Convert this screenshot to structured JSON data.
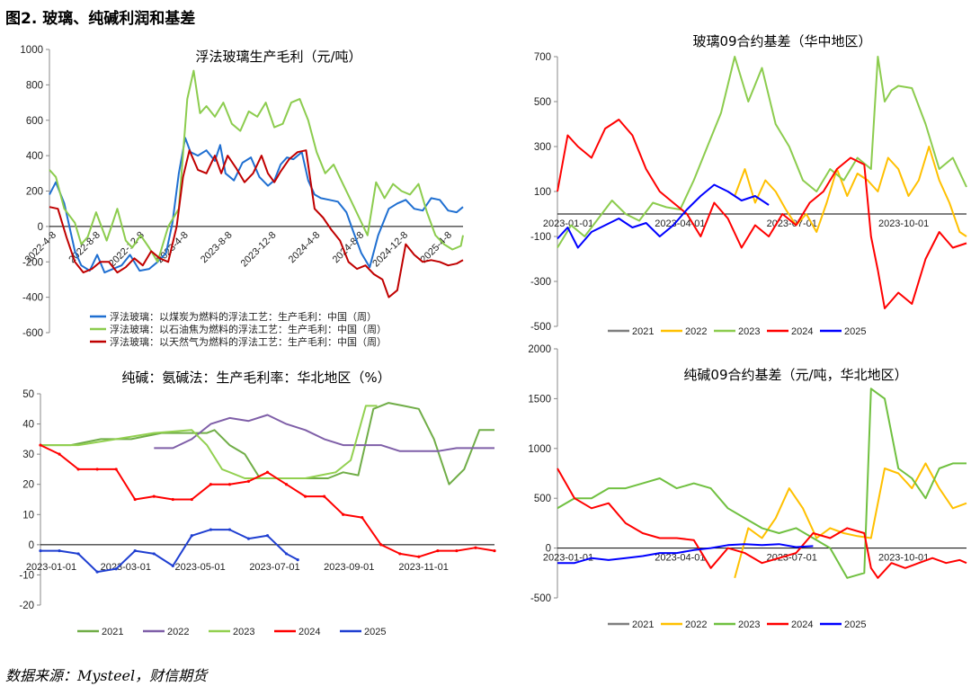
{
  "figure_title": "图2.  玻璃、纯碱利润和基差",
  "source": "数据来源：Mysteel，财信期货",
  "chart_data": [
    {
      "id": "float_glass_profit",
      "type": "line",
      "title": "浮法玻璃生产毛利（元/吨）",
      "ylim": [
        -600,
        1000
      ],
      "yticks": [
        -600,
        -400,
        -200,
        0,
        200,
        400,
        600,
        800,
        1000
      ],
      "xticks": [
        "2022-4-8",
        "2022-8-8",
        "2022-12-8",
        "2023-4-8",
        "2023-8-8",
        "2023-12-8",
        "2024-4-8",
        "2024-8-8",
        "2024-12-8",
        "2025-4-8"
      ],
      "xrange": [
        0,
        39
      ],
      "legend_position": "bottom",
      "series": [
        {
          "name": "浮法玻璃：以煤炭为燃料的浮法工艺：生产毛利：中国（周）",
          "color": "#1f6fd1",
          "x": [
            0,
            0.6,
            1.4,
            2.4,
            3,
            3.8,
            4.5,
            5.2,
            6,
            6.8,
            7.6,
            8.5,
            9.4,
            10.2,
            11,
            11.6,
            12.2,
            12.8,
            13.3,
            14,
            14.8,
            15.6,
            16.1,
            16.6,
            17.4,
            18.2,
            19,
            19.8,
            20.6,
            21.2,
            21.8,
            22.4,
            23,
            23.8,
            24.4,
            25,
            25.6,
            26.4,
            27.2,
            28,
            28.6,
            29.4,
            30.2,
            31,
            32,
            32.8,
            33.6,
            34.4,
            35.2,
            36,
            36.8,
            37.6,
            38.4,
            39
          ],
          "y": [
            180,
            250,
            130,
            -140,
            -220,
            -250,
            -160,
            -260,
            -240,
            -220,
            -160,
            -250,
            -240,
            -200,
            -150,
            20,
            300,
            500,
            420,
            400,
            430,
            370,
            460,
            300,
            260,
            360,
            390,
            280,
            230,
            260,
            350,
            390,
            380,
            420,
            260,
            180,
            160,
            150,
            140,
            80,
            -20,
            -150,
            -230,
            -50,
            100,
            130,
            150,
            100,
            90,
            160,
            150,
            90,
            80,
            110
          ]
        },
        {
          "name": "浮法玻璃：以石油焦为燃料的浮法工艺：生产毛利：中国（周）",
          "color": "#8ccc4e",
          "x": [
            0,
            0.6,
            1.4,
            2.4,
            3,
            3.6,
            4.4,
            5.4,
            6.4,
            7.2,
            7.8,
            8.6,
            9.4,
            10.2,
            11.2,
            12.2,
            13,
            13.6,
            14.2,
            14.8,
            15.6,
            16.4,
            17.2,
            18,
            18.8,
            19.6,
            20.4,
            21.2,
            22,
            22.8,
            23.6,
            24.4,
            25.2,
            26,
            26.8,
            27.6,
            28.4,
            29.2,
            30,
            30.8,
            31.6,
            32.4,
            33.2,
            34,
            34.8,
            35.6,
            36.4,
            37.2,
            38,
            38.8,
            39
          ],
          "y": [
            320,
            280,
            100,
            20,
            -100,
            -60,
            80,
            -80,
            100,
            -80,
            -120,
            -50,
            -120,
            -200,
            0,
            100,
            720,
            880,
            640,
            680,
            620,
            700,
            580,
            540,
            650,
            620,
            700,
            560,
            580,
            700,
            720,
            600,
            420,
            300,
            350,
            250,
            150,
            50,
            -50,
            250,
            160,
            240,
            200,
            180,
            240,
            80,
            -50,
            -100,
            -130,
            -110,
            -50
          ]
        },
        {
          "name": "浮法玻璃：以天然气为燃料的浮法工艺：生产毛利：中国（周）",
          "color": "#c00000",
          "x": [
            0,
            0.8,
            1.6,
            2.4,
            3.2,
            4,
            4.8,
            5.6,
            6.4,
            7.2,
            8,
            8.8,
            9.6,
            10.4,
            11.2,
            12,
            12.6,
            13.2,
            14,
            14.8,
            15.6,
            16.2,
            16.8,
            17.6,
            18.4,
            19.2,
            20,
            20.6,
            21.2,
            21.8,
            22.6,
            23.4,
            24.2,
            25,
            25.8,
            26.6,
            27.4,
            28.2,
            29,
            29.8,
            30.6,
            31.4,
            32,
            32.8,
            33.6,
            34.4,
            35.2,
            36,
            36.8,
            37.6,
            38.4,
            39
          ],
          "y": [
            110,
            100,
            -60,
            -200,
            -260,
            -240,
            -200,
            -200,
            -260,
            -230,
            -180,
            -220,
            -140,
            -180,
            -200,
            0,
            280,
            430,
            320,
            300,
            400,
            300,
            400,
            330,
            250,
            300,
            400,
            300,
            250,
            310,
            380,
            420,
            430,
            100,
            50,
            -20,
            -80,
            -200,
            -240,
            -220,
            -270,
            -300,
            -400,
            -360,
            -100,
            -160,
            -200,
            -190,
            -200,
            -220,
            -210,
            -190
          ]
        }
      ]
    },
    {
      "id": "glass_basis",
      "type": "line",
      "title": "玻璃09合约基差（华中地区）",
      "ylim": [
        -500,
        700
      ],
      "yticks": [
        -500,
        -300,
        -100,
        100,
        300,
        500,
        700
      ],
      "xticks": [
        "2023-01-01",
        "2023-04-01",
        "2023-07-01",
        "2023-10-01"
      ],
      "xrange": [
        0,
        12
      ],
      "legend_position": "bottom",
      "series": [
        {
          "name": "2021",
          "color": "#7f7f7f",
          "x": [],
          "y": []
        },
        {
          "name": "2022",
          "color": "#ffc000",
          "x": [
            5.2,
            5.5,
            5.8,
            6.1,
            6.4,
            6.7,
            7,
            7.3,
            7.6,
            7.9,
            8.2,
            8.5,
            8.8,
            9.1,
            9.4,
            9.7,
            10,
            10.3,
            10.6,
            10.9,
            11.2,
            11.5,
            11.8,
            12
          ],
          "y": [
            80,
            200,
            50,
            150,
            100,
            20,
            -50,
            0,
            -80,
            50,
            200,
            80,
            180,
            150,
            100,
            250,
            200,
            80,
            150,
            300,
            150,
            50,
            -80,
            -100
          ]
        },
        {
          "name": "2023",
          "color": "#8ccc4e",
          "x": [
            0,
            0.4,
            0.8,
            1.2,
            1.6,
            2,
            2.4,
            2.8,
            3.2,
            3.6,
            4,
            4.4,
            4.8,
            5.2,
            5.6,
            6,
            6.4,
            6.8,
            7.2,
            7.6,
            8,
            8.4,
            8.8,
            9.2,
            9.4,
            9.6,
            9.8,
            10,
            10.4,
            10.8,
            11.2,
            11.6,
            12
          ],
          "y": [
            -150,
            -50,
            -100,
            -20,
            60,
            0,
            -30,
            50,
            30,
            20,
            150,
            300,
            450,
            700,
            500,
            650,
            400,
            300,
            150,
            100,
            200,
            150,
            250,
            200,
            700,
            500,
            550,
            570,
            560,
            400,
            200,
            250,
            120
          ]
        },
        {
          "name": "2024",
          "color": "#ff0000",
          "x": [
            0,
            0.3,
            0.6,
            1,
            1.4,
            1.8,
            2.2,
            2.6,
            3,
            3.4,
            3.8,
            4.2,
            4.6,
            5,
            5.4,
            5.8,
            6.2,
            6.6,
            7,
            7.4,
            7.8,
            8.2,
            8.6,
            9,
            9.2,
            9.4,
            9.6,
            10,
            10.4,
            10.8,
            11.2,
            11.6,
            12
          ],
          "y": [
            100,
            350,
            300,
            250,
            380,
            420,
            350,
            200,
            100,
            50,
            0,
            -100,
            50,
            -20,
            -150,
            -50,
            -100,
            0,
            -50,
            50,
            100,
            200,
            250,
            220,
            -100,
            -250,
            -420,
            -350,
            -400,
            -200,
            -80,
            -150,
            -130
          ]
        },
        {
          "name": "2025",
          "color": "#0000ff",
          "x": [
            0,
            0.3,
            0.6,
            1,
            1.4,
            1.8,
            2.2,
            2.6,
            3,
            3.4,
            3.8,
            4.2,
            4.6,
            5,
            5.4,
            5.8,
            6.2
          ],
          "y": [
            -110,
            -60,
            -150,
            -80,
            -50,
            -20,
            -60,
            -40,
            -100,
            -50,
            20,
            80,
            130,
            100,
            60,
            80,
            40
          ]
        }
      ]
    },
    {
      "id": "soda_ash_margin",
      "type": "line",
      "title": "纯碱：氨碱法：生产毛利率：华北地区（%）",
      "ylim": [
        -20,
        50
      ],
      "yticks": [
        -20,
        -10,
        0,
        10,
        20,
        30,
        40,
        50
      ],
      "xticks": [
        "2023-01-01",
        "2023-03-01",
        "2023-05-01",
        "2023-07-01",
        "2023-09-01",
        "2023-11-01"
      ],
      "xrange": [
        0,
        12
      ],
      "legend_position": "bottom",
      "series": [
        {
          "name": "2021",
          "color": "#70ad47",
          "x": [
            0,
            0.8,
            1.6,
            2.4,
            3.2,
            4,
            4.4,
            4.6,
            5,
            5.4,
            5.8,
            6.2,
            6.6,
            7,
            7.6,
            8,
            8.4,
            8.8,
            9.2,
            9.6,
            10,
            10.4,
            10.8,
            11.2,
            11.6,
            12
          ],
          "y": [
            33,
            33,
            35,
            35,
            37,
            37,
            37,
            38,
            33,
            30,
            22,
            22,
            22,
            22,
            22,
            24,
            23,
            45,
            47,
            46,
            45,
            35,
            20,
            25,
            38,
            38
          ]
        },
        {
          "name": "2022",
          "color": "#7f5fa8",
          "x": [
            3,
            3.5,
            4,
            4.5,
            5,
            5.5,
            6,
            6.5,
            7,
            7.5,
            8,
            8.5,
            9,
            9.5,
            10,
            10.5,
            11,
            11.5,
            12
          ],
          "y": [
            32,
            32,
            35,
            40,
            42,
            41,
            43,
            40,
            38,
            35,
            33,
            33,
            33,
            31,
            31,
            31,
            32,
            32,
            32
          ]
        },
        {
          "name": "2023",
          "color": "#92d050",
          "x": [
            0,
            1,
            2,
            3,
            4,
            4.4,
            4.8,
            5.4,
            6,
            6.6,
            7,
            7.4,
            7.8,
            8.2,
            8.6,
            8.9
          ],
          "y": [
            33,
            33,
            35,
            37,
            38,
            33,
            25,
            22,
            22,
            22,
            22,
            23,
            24,
            28,
            46,
            46
          ]
        },
        {
          "name": "2024",
          "color": "#ff0000",
          "x": [
            0,
            0.5,
            1,
            1.5,
            2,
            2.5,
            3,
            3.5,
            4,
            4.5,
            5,
            5.5,
            6,
            6.5,
            7,
            7.5,
            8,
            8.5,
            9,
            9.5,
            10,
            10.5,
            11,
            11.5,
            12
          ],
          "y": [
            33,
            30,
            25,
            25,
            25,
            15,
            16,
            15,
            15,
            20,
            20,
            21,
            24,
            20,
            16,
            16,
            10,
            9,
            0,
            -3,
            -4,
            -2,
            -2,
            -1,
            -2
          ]
        },
        {
          "name": "2025",
          "color": "#1f3fd1",
          "x": [
            0,
            0.5,
            1,
            1.5,
            2,
            2.5,
            3,
            3.5,
            4,
            4.5,
            5,
            5.5,
            6,
            6.5,
            6.8
          ],
          "y": [
            -2,
            -2,
            -3,
            -9,
            -8,
            -2,
            -3,
            -7,
            3,
            5,
            5,
            2,
            3,
            -3,
            -5
          ]
        }
      ]
    },
    {
      "id": "soda_ash_basis",
      "type": "line",
      "title": "纯碱09合约基差（元/吨，华北地区）",
      "ylim": [
        -500,
        2000
      ],
      "yticks": [
        -500,
        0,
        500,
        1000,
        1500,
        2000
      ],
      "xticks": [
        "2023-01-01",
        "2023-04-01",
        "2023-07-01",
        "2023-10-01"
      ],
      "xrange": [
        0,
        12
      ],
      "legend_position": "bottom",
      "series": [
        {
          "name": "2021",
          "color": "#7f7f7f",
          "x": [],
          "y": []
        },
        {
          "name": "2022",
          "color": "#ffc000",
          "x": [
            5.2,
            5.6,
            6,
            6.4,
            6.8,
            7.2,
            7.6,
            8,
            8.4,
            8.8,
            9.2,
            9.6,
            10,
            10.4,
            10.8,
            11.2,
            11.6,
            12
          ],
          "y": [
            -300,
            200,
            100,
            300,
            600,
            400,
            100,
            200,
            150,
            120,
            100,
            800,
            750,
            600,
            850,
            600,
            400,
            450
          ]
        },
        {
          "name": "2023",
          "color": "#70c040",
          "x": [
            0,
            0.5,
            1,
            1.5,
            2,
            2.5,
            3,
            3.5,
            4,
            4.5,
            5,
            5.5,
            6,
            6.5,
            7,
            7.5,
            8,
            8.5,
            9,
            9.2,
            9.4,
            9.6,
            10,
            10.4,
            10.8,
            11.2,
            11.6,
            12
          ],
          "y": [
            400,
            500,
            500,
            600,
            600,
            650,
            700,
            600,
            650,
            600,
            400,
            300,
            200,
            150,
            200,
            100,
            0,
            -300,
            -250,
            1600,
            1550,
            1500,
            800,
            700,
            500,
            800,
            850,
            850
          ]
        },
        {
          "name": "2024",
          "color": "#ff0000",
          "x": [
            0,
            0.5,
            1,
            1.5,
            2,
            2.5,
            3,
            3.5,
            4,
            4.5,
            5,
            5.5,
            6,
            6.5,
            7,
            7.5,
            8,
            8.5,
            9,
            9.2,
            9.4,
            9.8,
            10.2,
            10.6,
            11,
            11.4,
            11.8,
            12
          ],
          "y": [
            800,
            500,
            400,
            450,
            250,
            150,
            100,
            100,
            80,
            -200,
            0,
            -50,
            -150,
            -100,
            -50,
            150,
            100,
            200,
            150,
            -200,
            -300,
            -150,
            -200,
            -150,
            -100,
            -150,
            -120,
            -150
          ]
        },
        {
          "name": "2025",
          "color": "#0000ff",
          "x": [
            0,
            0.5,
            1,
            1.5,
            2,
            2.5,
            3,
            3.5,
            4,
            4.5,
            5,
            5.5,
            6,
            6.5,
            7,
            7.5
          ],
          "y": [
            -150,
            -150,
            -100,
            -120,
            -100,
            -80,
            -50,
            -50,
            -20,
            0,
            30,
            40,
            30,
            40,
            10,
            20
          ]
        }
      ]
    }
  ]
}
